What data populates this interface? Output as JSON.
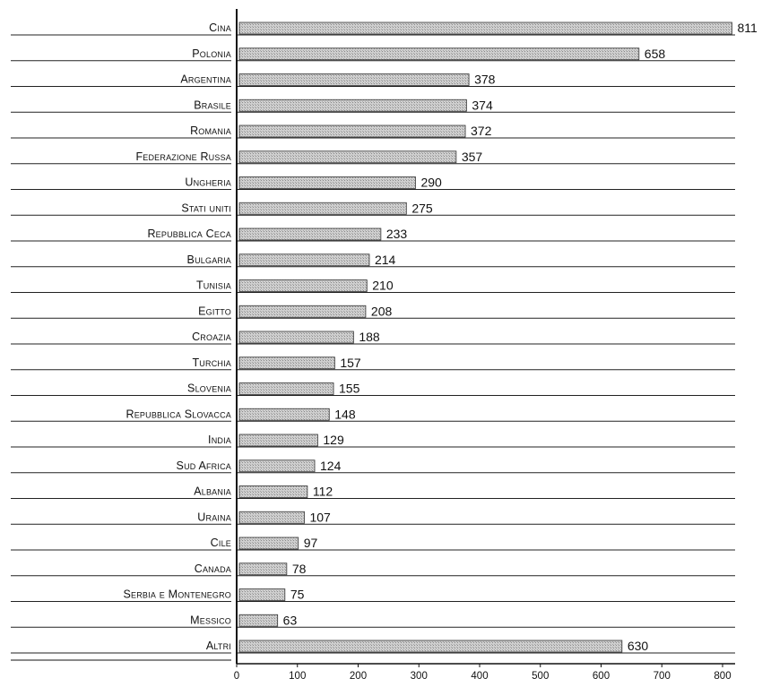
{
  "chart_data": {
    "type": "bar",
    "orientation": "horizontal",
    "categories": [
      "Cina",
      "Polonia",
      "Argentina",
      "Brasile",
      "Romania",
      "Federazione Russa",
      "Ungheria",
      "Stati uniti",
      "Repubblica Ceca",
      "Bulgaria",
      "Tunisia",
      "Egitto",
      "Croazia",
      "Turchia",
      "Slovenia",
      "Repubblica Slovacca",
      "India",
      "Sud Africa",
      "Albania",
      "Uraina",
      "Cile",
      "Canada",
      "Serbia e Montenegro",
      "Messico",
      "Altri"
    ],
    "values": [
      811,
      658,
      378,
      374,
      372,
      357,
      290,
      275,
      233,
      214,
      210,
      208,
      188,
      157,
      155,
      148,
      129,
      124,
      112,
      107,
      97,
      78,
      75,
      63,
      630
    ],
    "xticks": [
      "0",
      "100",
      "200",
      "300",
      "400",
      "500",
      "600",
      "700",
      "800"
    ],
    "xlim": [
      0,
      800
    ],
    "grid": false,
    "bar_color": "#c8c8c8",
    "title": "",
    "xlabel": "",
    "ylabel": ""
  }
}
